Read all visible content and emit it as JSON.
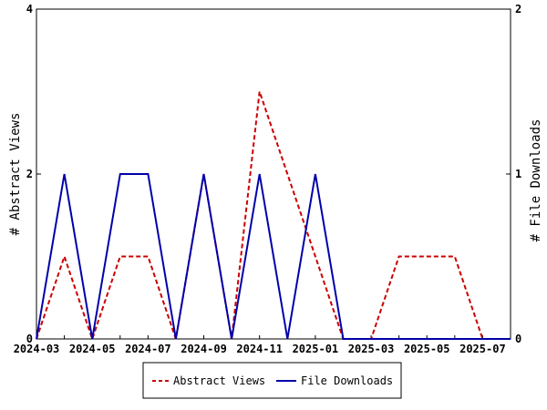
{
  "chart_data": {
    "type": "line",
    "categories": [
      "2024-03",
      "2024-04",
      "2024-05",
      "2024-06",
      "2024-07",
      "2024-08",
      "2024-09",
      "2024-10",
      "2024-11",
      "2024-12",
      "2025-01",
      "2025-02",
      "2025-03",
      "2025-04",
      "2025-05",
      "2025-06",
      "2025-07",
      "2025-08"
    ],
    "x_tick_labels": [
      "2024-03",
      "2024-05",
      "2024-07",
      "2024-09",
      "2024-11",
      "2025-01",
      "2025-03",
      "2025-05",
      "2025-07"
    ],
    "y_left": {
      "label": "# Abstract Views",
      "range": [
        0,
        4
      ],
      "ticks": [
        "0",
        "2",
        "4"
      ]
    },
    "y_right": {
      "label": "# File Downloads",
      "range": [
        0,
        2
      ],
      "ticks": [
        "0",
        "1",
        "2"
      ]
    },
    "series": [
      {
        "name": "Abstract Views",
        "axis": "left",
        "color": "#cc0000",
        "dash": "dashed",
        "values": [
          0,
          1,
          0,
          1,
          1,
          0,
          2,
          0,
          3,
          2,
          1,
          0,
          0,
          1,
          1,
          1,
          0,
          0
        ]
      },
      {
        "name": "File Downloads",
        "axis": "right",
        "color": "#0000aa",
        "dash": "solid",
        "values": [
          0,
          1,
          0,
          1,
          1,
          0,
          1,
          0,
          1,
          0,
          1,
          0,
          0,
          0,
          0,
          0,
          0,
          0
        ]
      }
    ],
    "grid": false,
    "legend_position": "bottom-center"
  }
}
